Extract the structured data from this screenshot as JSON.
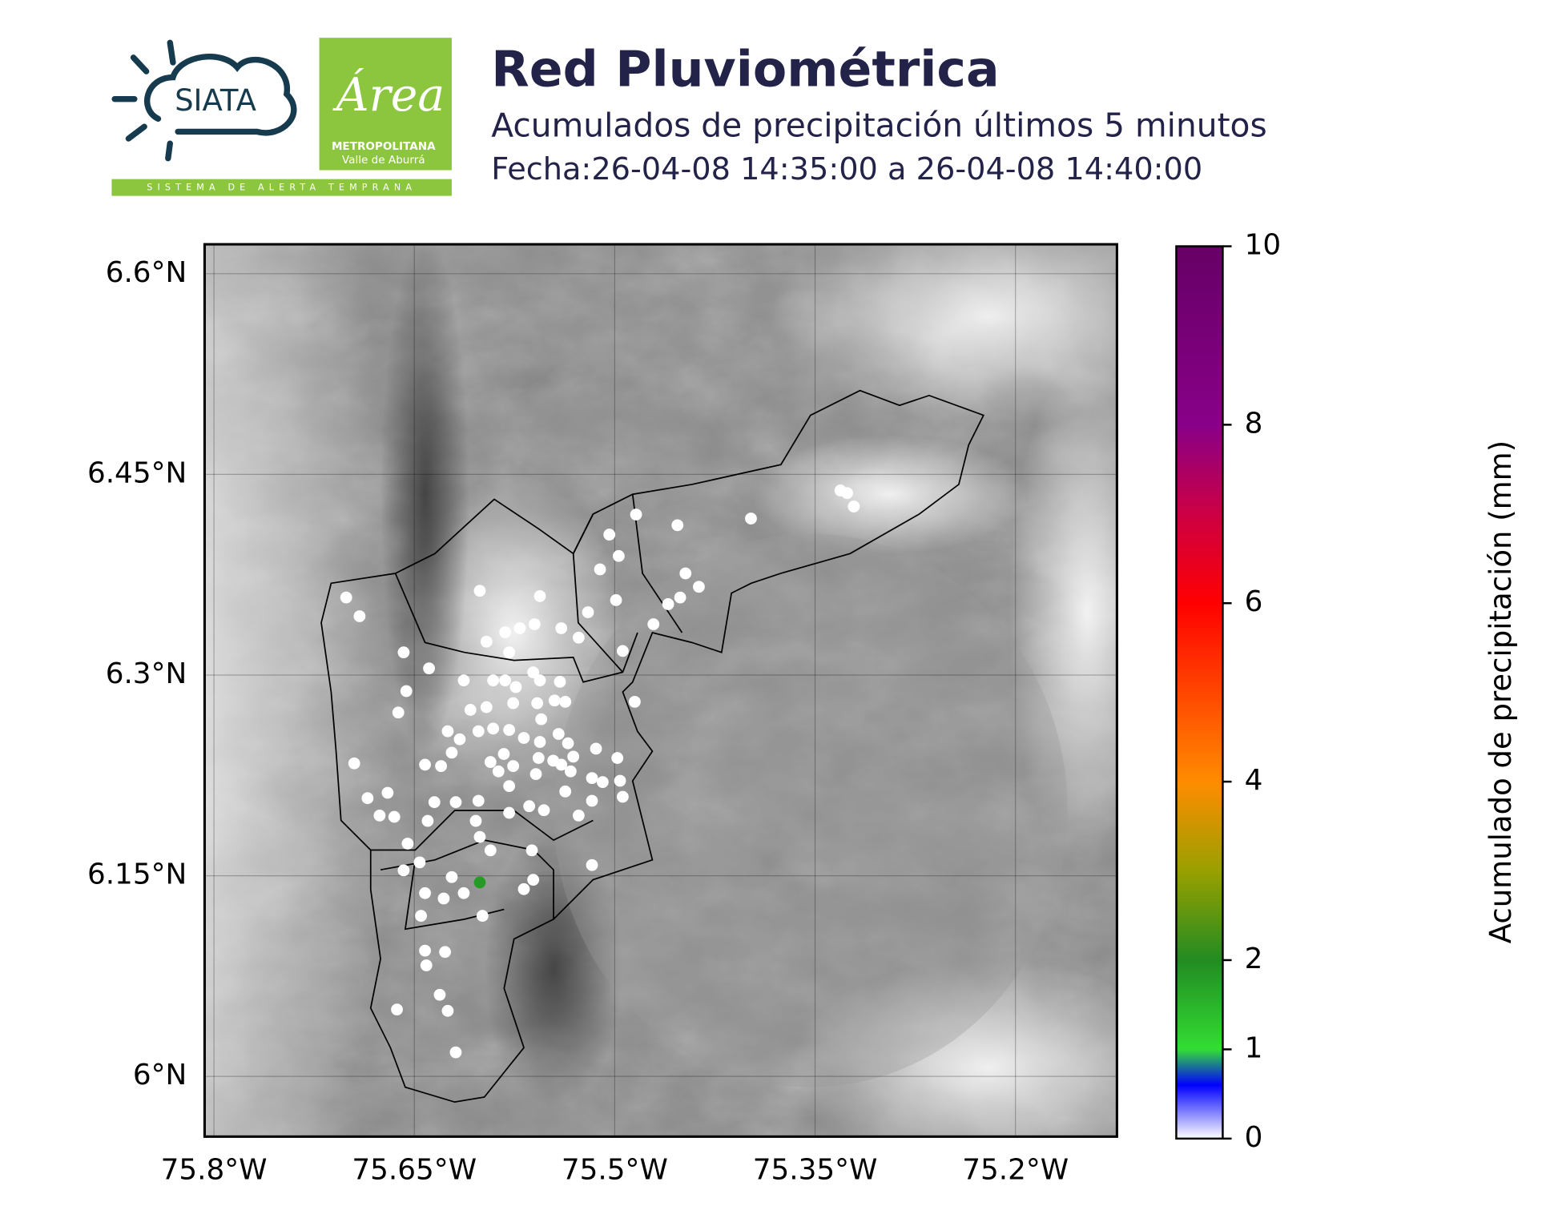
{
  "logos": {
    "siata": "SIATA",
    "area": "Área",
    "metropolitana": "METROPOLITANA",
    "valle": "Valle de Aburrá",
    "tagline": "SISTEMA DE ALERTA TEMPRANA"
  },
  "chart_data": {
    "type": "map",
    "title": "Red Pluviométrica",
    "subtitle": "Acumulados de precipitación últimos 5 minutos",
    "date": "Fecha:26-04-08 14:35:00 a 26-04-08 14:40:00",
    "xlim": [
      -75.807,
      -75.124
    ],
    "ylim": [
      5.955,
      6.622
    ],
    "xticks": [
      {
        "value": -75.8,
        "label": "75.8°W"
      },
      {
        "value": -75.65,
        "label": "75.65°W"
      },
      {
        "value": -75.5,
        "label": "75.5°W"
      },
      {
        "value": -75.35,
        "label": "75.35°W"
      },
      {
        "value": -75.2,
        "label": "75.2°W"
      }
    ],
    "yticks": [
      {
        "value": 6.6,
        "label": "6.6°N"
      },
      {
        "value": 6.45,
        "label": "6.45°N"
      },
      {
        "value": 6.3,
        "label": "6.3°N"
      },
      {
        "value": 6.15,
        "label": "6.15°N"
      },
      {
        "value": 6.0,
        "label": "6°N"
      }
    ],
    "grid": true,
    "colorbar_label": "Acumulado de precipitación (mm)",
    "clim": [
      0,
      10
    ],
    "cticks": [
      0,
      1,
      2,
      4,
      6,
      8,
      10
    ],
    "colormap": [
      {
        "value": 0,
        "color": "#ffffff"
      },
      {
        "value": 0.6,
        "color": "#0000ff"
      },
      {
        "value": 1,
        "color": "#33dd33"
      },
      {
        "value": 2,
        "color": "#228b22"
      },
      {
        "value": 3,
        "color": "#99a000"
      },
      {
        "value": 4,
        "color": "#ff8c00"
      },
      {
        "value": 6,
        "color": "#ff0000"
      },
      {
        "value": 7,
        "color": "#cc0044"
      },
      {
        "value": 8,
        "color": "#880088"
      },
      {
        "value": 10,
        "color": "#660066"
      }
    ],
    "x": [
      -75.701,
      -75.691,
      -75.658,
      -75.639,
      -75.613,
      -75.656,
      -75.662,
      -75.695,
      -75.685,
      -75.67,
      -75.676,
      -75.665,
      -75.642,
      -75.63,
      -75.64,
      -75.655,
      -75.658,
      -75.646,
      -75.642,
      -75.645,
      -75.622,
      -75.613,
      -75.628,
      -75.599,
      -75.642,
      -75.627,
      -75.641,
      -75.631,
      -75.625,
      -75.663,
      -75.619,
      -75.601,
      -75.556,
      -75.596,
      -75.582,
      -75.571,
      -75.56,
      -75.579,
      -75.591,
      -75.582,
      -75.574,
      -75.561,
      -75.556,
      -75.541,
      -75.537,
      -75.576,
      -75.558,
      -75.608,
      -75.625,
      -75.616,
      -75.602,
      -75.591,
      -75.579,
      -75.568,
      -75.556,
      -75.542,
      -75.535,
      -75.593,
      -75.583,
      -75.557,
      -75.546,
      -75.531,
      -75.514,
      -75.498,
      -75.517,
      -75.533,
      -75.559,
      -75.579,
      -75.602,
      -75.619,
      -75.635,
      -75.579,
      -75.564,
      -75.553,
      -75.537,
      -75.527,
      -75.517,
      -75.494,
      -75.604,
      -75.601,
      -75.593,
      -75.562,
      -75.568,
      -75.561,
      -75.517,
      -75.527,
      -75.52,
      -75.511,
      -75.504,
      -75.497,
      -75.499,
      -75.494,
      -75.484,
      -75.471,
      -75.46,
      -75.453,
      -75.451,
      -75.447,
      -75.437,
      -75.398,
      -75.331,
      -75.326,
      -75.321,
      -75.485,
      -75.509,
      -75.496,
      -75.54,
      -75.545,
      -75.54,
      -75.596,
      -75.622,
      -75.587,
      -75.576,
      -75.555,
      -75.601
    ],
    "y": [
      6.358,
      6.344,
      6.317,
      6.305,
      6.296,
      6.288,
      6.272,
      6.234,
      6.208,
      6.212,
      6.195,
      6.194,
      6.233,
      6.232,
      6.191,
      6.174,
      6.154,
      6.16,
      6.137,
      6.12,
      6.149,
      6.137,
      6.133,
      6.12,
      6.094,
      6.093,
      6.083,
      6.061,
      6.049,
      6.05,
      6.018,
      6.363,
      6.359,
      6.325,
      6.332,
      6.335,
      6.338,
      6.317,
      6.296,
      6.296,
      6.291,
      6.302,
      6.296,
      6.295,
      6.28,
      6.279,
      6.279,
      6.274,
      6.258,
      6.252,
      6.258,
      6.26,
      6.259,
      6.253,
      6.25,
      6.256,
      6.249,
      6.235,
      6.241,
      6.238,
      6.236,
      6.239,
      6.245,
      6.238,
      6.223,
      6.228,
      6.226,
      6.217,
      6.206,
      6.205,
      6.205,
      6.197,
      6.202,
      6.199,
      6.213,
      6.195,
      6.206,
      6.209,
      6.191,
      6.179,
      6.169,
      6.169,
      6.14,
      6.147,
      6.158,
      6.328,
      6.347,
      6.379,
      6.405,
      6.389,
      6.356,
      6.318,
      6.42,
      6.338,
      6.353,
      6.412,
      6.358,
      6.376,
      6.366,
      6.417,
      6.438,
      6.436,
      6.426,
      6.28,
      6.22,
      6.221,
      6.233,
      6.281,
      6.335,
      6.276,
      6.242,
      6.228,
      6.232,
      6.267,
      6.145
    ],
    "values": [
      0,
      0,
      0,
      0,
      0,
      0,
      0,
      0,
      0,
      0,
      0,
      0,
      0,
      0,
      0,
      0,
      0,
      0,
      0,
      0,
      0,
      0,
      0,
      0,
      0,
      0,
      0,
      0,
      0,
      0,
      0,
      0,
      0,
      0,
      0,
      0,
      0,
      0,
      0,
      0,
      0,
      0,
      0,
      0,
      0,
      0,
      0,
      0,
      0,
      0,
      0,
      0,
      0,
      0,
      0,
      0,
      0,
      0,
      0,
      0,
      0,
      0,
      0,
      0,
      0,
      0,
      0,
      0,
      0,
      0,
      0,
      0,
      0,
      0,
      0,
      0,
      0,
      0,
      0,
      0,
      0,
      0,
      0,
      0,
      0,
      0,
      0,
      0,
      0,
      0,
      0,
      0,
      0,
      0,
      0,
      0,
      0,
      0,
      0,
      0,
      0,
      0,
      0,
      0,
      0,
      0,
      0,
      0,
      0,
      0,
      0,
      0,
      0,
      0,
      1.8
    ]
  }
}
